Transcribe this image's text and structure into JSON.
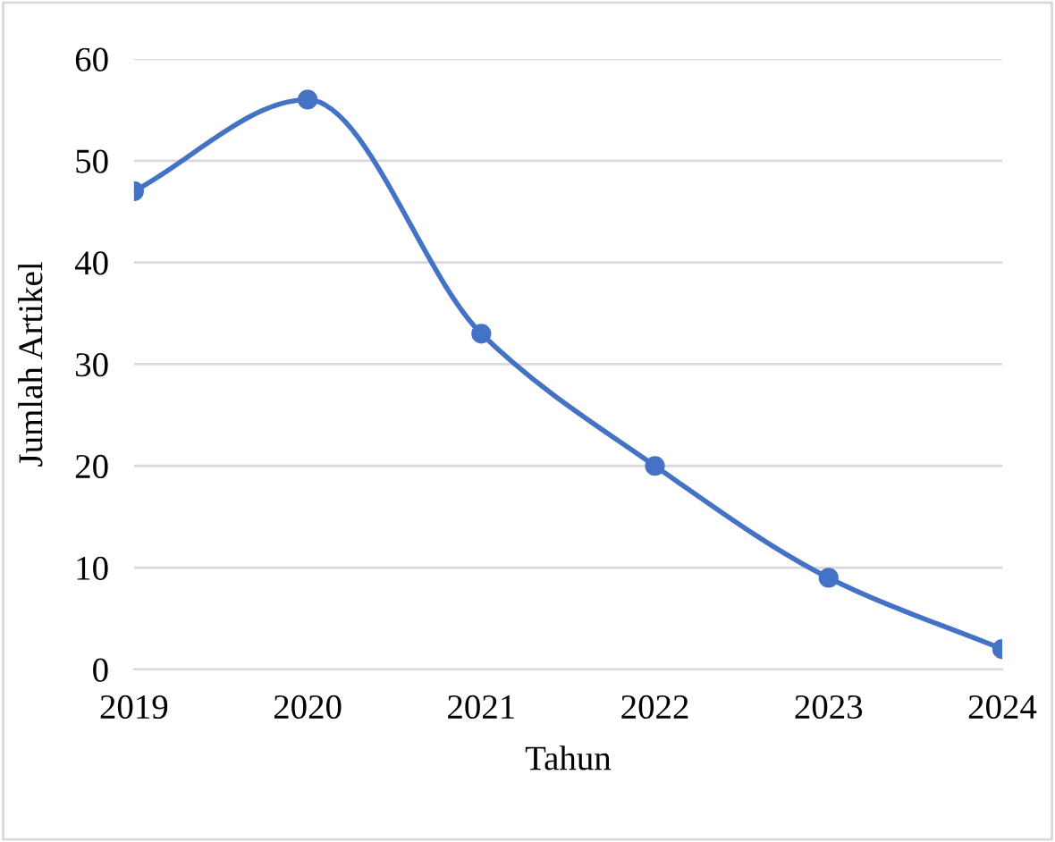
{
  "chart_data": {
    "type": "line",
    "xlabel": "Tahun",
    "ylabel": "Jumlah Artikel",
    "x": [
      2019,
      2020,
      2021,
      2022,
      2023,
      2024
    ],
    "series": [
      {
        "color": "#4472c4",
        "values": [
          47,
          56,
          33,
          20,
          9,
          2
        ]
      }
    ],
    "xlim": [
      2019,
      2024
    ],
    "xticks": [
      2019,
      2020,
      2021,
      2022,
      2023,
      2024
    ],
    "ylim": [
      0,
      60
    ],
    "yticks": [
      0,
      10,
      20,
      30,
      40,
      50,
      60
    ],
    "grid": "y",
    "marker": "circle",
    "line_style": "solid"
  }
}
